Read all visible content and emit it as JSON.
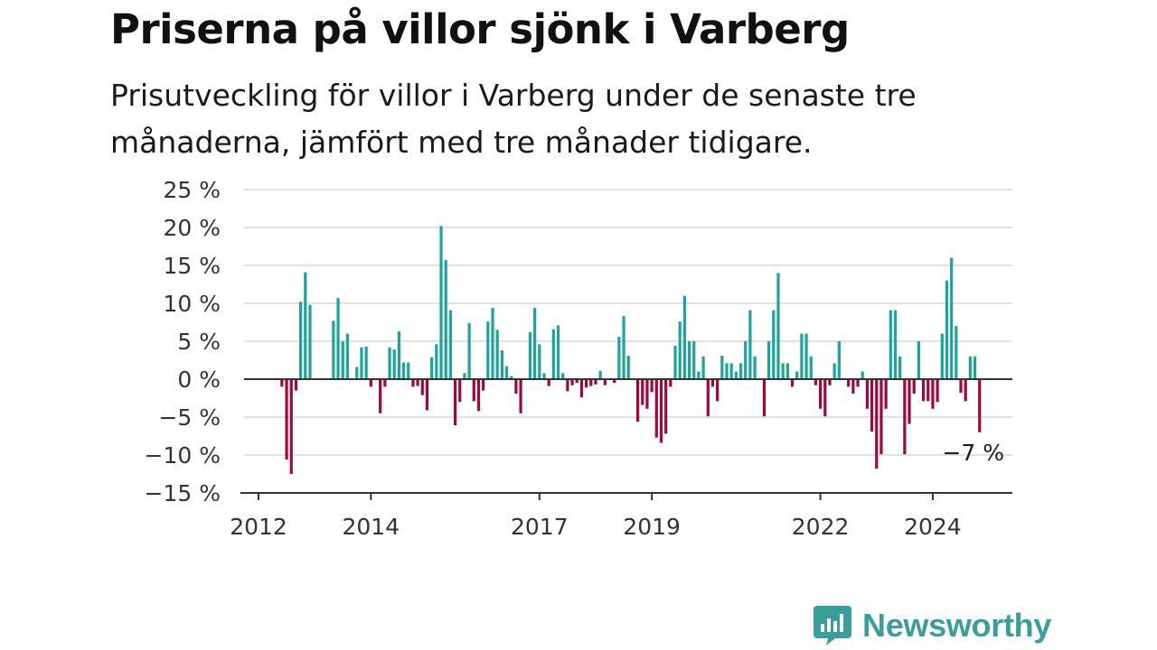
{
  "header": {
    "title": "Priserna på villor sjönk i Varberg",
    "subtitle": "Prisutveckling för villor i Varberg under de senaste tre månaderna, jämfört med tre månader tidigare."
  },
  "brand": {
    "name": "Newsworthy",
    "icon": "newsworthy-logo-icon",
    "color": "#3a9e9a"
  },
  "chart_data": {
    "type": "bar",
    "x_unit": "month",
    "x_start": "2012-06",
    "x_end": "2024-08",
    "ylim": [
      -15,
      25
    ],
    "yticks": [
      25,
      20,
      15,
      10,
      5,
      0,
      -5,
      -10,
      -15
    ],
    "ytick_labels": [
      "25 %",
      "20 %",
      "15 %",
      "10 %",
      "5 %",
      "0 %",
      "−5 %",
      "−10 %",
      "−15 %"
    ],
    "xticks": [
      "2012",
      "2014",
      "2017",
      "2019",
      "2022",
      "2024"
    ],
    "grid": true,
    "colors": {
      "positive": "#1fa39a",
      "negative": "#9c0a3c"
    },
    "annotation": {
      "text": "−7 %",
      "value": -7
    },
    "values": [
      -1,
      -10.6,
      -12.5,
      -1.5,
      10.2,
      14.1,
      9.8,
      null,
      null,
      null,
      null,
      7.7,
      10.7,
      5,
      6,
      null,
      1.6,
      4.2,
      4.3,
      -1,
      null,
      -4.5,
      -1,
      4.2,
      3.9,
      6.3,
      2.2,
      2.2,
      -1,
      -0.9,
      -2.1,
      -4.1,
      2.9,
      4.6,
      20.2,
      15.7,
      9.1,
      -6.1,
      -3,
      0.8,
      7.4,
      -2.9,
      -4.2,
      -1.5,
      7.6,
      9.4,
      6.5,
      3.8,
      1.7,
      0.4,
      -1.9,
      -4.5,
      null,
      6.2,
      9.4,
      4.6,
      0.8,
      -0.9,
      6.6,
      7.1,
      0.8,
      -1.6,
      -0.8,
      -0.5,
      -2.4,
      -1.1,
      -0.9,
      -0.7,
      1.1,
      -0.8,
      null,
      -0.5,
      5.6,
      8.3,
      3.1,
      null,
      -5.6,
      -3.4,
      -3.9,
      -1.7,
      -7.7,
      -8.4,
      -7.2,
      -1,
      4.4,
      7.6,
      11,
      5,
      5,
      1,
      3,
      -4.9,
      -1,
      -2.9,
      3.1,
      2.1,
      2.1,
      1,
      2.1,
      5,
      9.1,
      3,
      null,
      -4.9,
      5,
      9.1,
      14,
      2.1,
      2.1,
      -1,
      1,
      6,
      6,
      3,
      -0.8,
      -3.9,
      -4.9,
      -0.8,
      2.1,
      5,
      null,
      -1,
      -1.9,
      -1,
      1,
      -3.9,
      -6.9,
      -11.8,
      -9.9,
      -3.9,
      9.1,
      9.1,
      3,
      -9.9,
      -5.9,
      -1.9,
      5,
      -2.9,
      -2.9,
      -3.9,
      -3,
      6,
      13,
      16,
      7,
      -1.8,
      -2.9,
      3,
      3,
      -7
    ]
  }
}
